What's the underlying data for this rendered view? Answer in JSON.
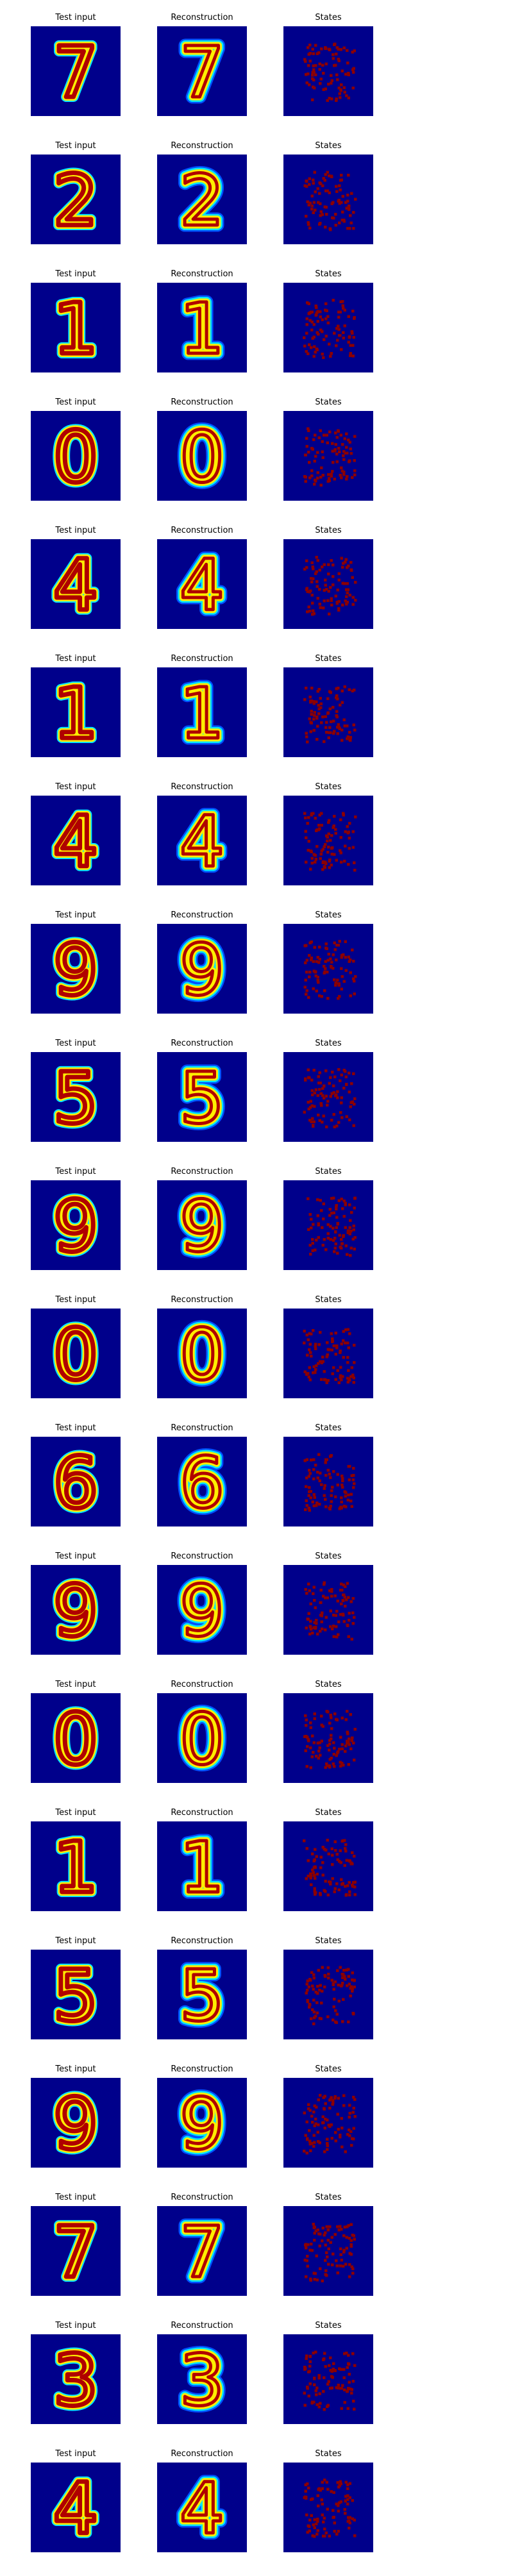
{
  "titles": {
    "input": "Test input",
    "reconstruction": "Reconstruction",
    "states": "States"
  },
  "colormap": {
    "background": "#00008b",
    "low": "#0050ff",
    "mid": "#00e5ff",
    "high": "#ffee00",
    "peak": "#b00000",
    "state_dot": "#8b0000"
  },
  "rows": [
    {
      "digit": "7"
    },
    {
      "digit": "2"
    },
    {
      "digit": "1"
    },
    {
      "digit": "0"
    },
    {
      "digit": "4"
    },
    {
      "digit": "1"
    },
    {
      "digit": "4"
    },
    {
      "digit": "9"
    },
    {
      "digit": "5"
    },
    {
      "digit": "9"
    },
    {
      "digit": "0"
    },
    {
      "digit": "6"
    },
    {
      "digit": "9"
    },
    {
      "digit": "0"
    },
    {
      "digit": "1"
    },
    {
      "digit": "5"
    },
    {
      "digit": "9"
    },
    {
      "digit": "7"
    },
    {
      "digit": "3"
    },
    {
      "digit": "4"
    }
  ]
}
